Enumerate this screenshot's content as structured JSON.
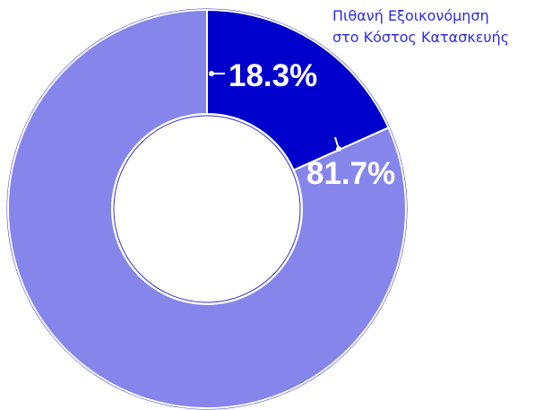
{
  "chart_data": {
    "type": "pie",
    "donut": true,
    "slices": [
      {
        "label": "Πιθανή Εξοικονόμηση στο Κόστος Κατασκευής",
        "value": 18.3,
        "display": "18.3%",
        "color": "#0000cc"
      },
      {
        "label": "",
        "value": 81.7,
        "display": "81.7%",
        "color": "#8585ec"
      }
    ],
    "annotation": {
      "line1": "Πιθανή Εξοικονόμηση",
      "line2": "στο Κόστος Κατασκευής"
    },
    "start_angle": "12 o'clock",
    "direction": "clockwise"
  }
}
